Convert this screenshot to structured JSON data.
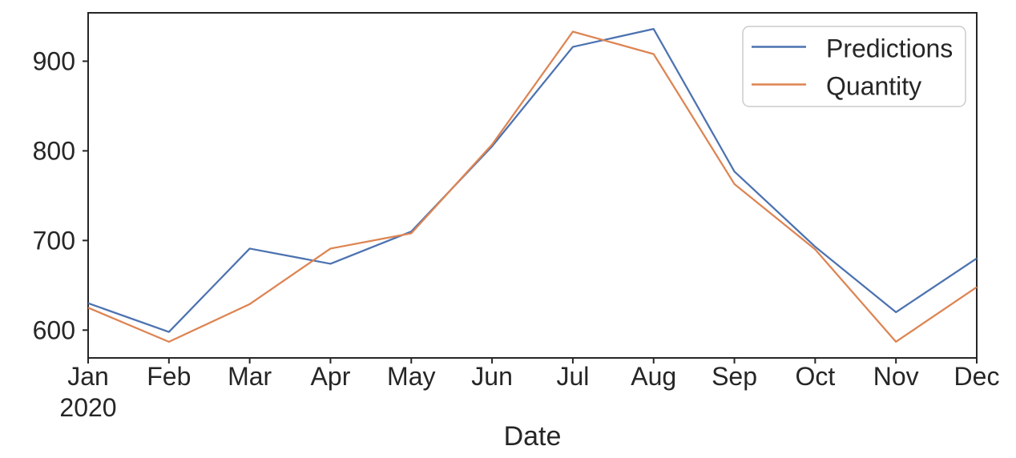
{
  "chart_data": {
    "type": "line",
    "title": "",
    "xlabel": "Date",
    "ylabel": "",
    "categories": [
      "Jan",
      "Feb",
      "Mar",
      "Apr",
      "May",
      "Jun",
      "Jul",
      "Aug",
      "Sep",
      "Oct",
      "Nov",
      "Dec"
    ],
    "x_first_tick_year": "2020",
    "series": [
      {
        "name": "Predictions",
        "color": "#4C72B0",
        "values": [
          630,
          598,
          691,
          674,
          710,
          805,
          916,
          936,
          777,
          693,
          620,
          680
        ]
      },
      {
        "name": "Quantity",
        "color": "#DD8452",
        "values": [
          625,
          587,
          629,
          691,
          708,
          807,
          933,
          908,
          763,
          690,
          587,
          648
        ]
      }
    ],
    "yticks": [
      600,
      700,
      800,
      900
    ],
    "ylim": [
      569,
      954
    ],
    "grid": false,
    "legend_position": "upper right"
  },
  "legend": {
    "entries": [
      {
        "label": "Predictions"
      },
      {
        "label": "Quantity"
      }
    ]
  },
  "colors": {
    "predictions_line": "#4C72B0",
    "quantity_line": "#DD8452",
    "axis": "#262626",
    "text": "#262626",
    "legend_border": "#cccccc",
    "background": "#ffffff"
  }
}
